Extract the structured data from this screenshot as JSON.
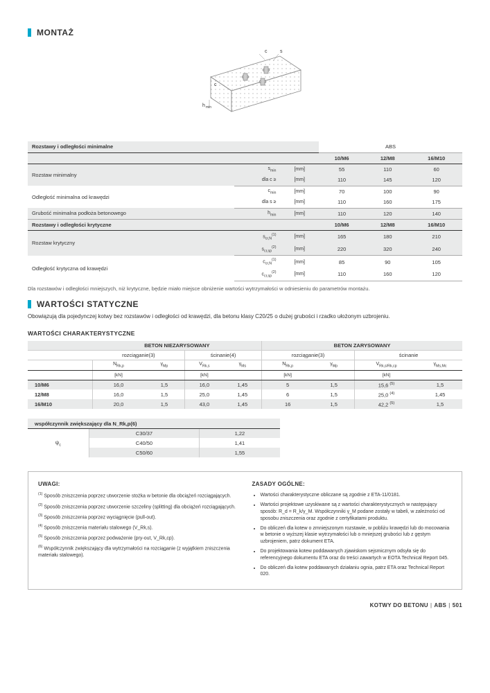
{
  "sections": {
    "montaz": "MONTAŻ",
    "statyczne": "WARTOŚCI STATYCZNE"
  },
  "diagram": {
    "hmin": "hmin",
    "c": "c",
    "s": "s"
  },
  "table1": {
    "title_min": "Rozstawy i odległości minimalne",
    "title_kryt": "Rozstawy i odległości krytyczne",
    "abs": "ABS",
    "cols": [
      "10/M6",
      "12/M8",
      "16/M10"
    ],
    "rows": [
      {
        "label": "Rozstaw minimalny",
        "sub": [
          {
            "sym": "s_min",
            "unit": "[mm]",
            "vals": [
              "55",
              "110",
              "60"
            ],
            "dark": true
          },
          {
            "sym": "dla c ≥",
            "unit": "[mm]",
            "vals": [
              "110",
              "145",
              "120"
            ],
            "dark": true
          }
        ]
      },
      {
        "label": "Odległość minimalna od krawędzi",
        "sub": [
          {
            "sym": "c_min",
            "unit": "[mm]",
            "vals": [
              "70",
              "100",
              "90"
            ],
            "dark": false
          },
          {
            "sym": "dla s ≥",
            "unit": "[mm]",
            "vals": [
              "110",
              "160",
              "175"
            ],
            "dark": false
          }
        ]
      },
      {
        "label": "Grubość minimalna podłoża betonowego",
        "sub": [
          {
            "sym": "h_min",
            "unit": "[mm]",
            "vals": [
              "110",
              "120",
              "140"
            ],
            "dark": true
          }
        ]
      }
    ],
    "rows2": [
      {
        "label": "Rozstaw krytyczny",
        "sub": [
          {
            "sym": "s_cr,N(1)",
            "unit": "[mm]",
            "vals": [
              "165",
              "180",
              "210"
            ],
            "dark": true
          },
          {
            "sym": "s_cr,sp(2)",
            "unit": "[mm]",
            "vals": [
              "220",
              "320",
              "240"
            ],
            "dark": true
          }
        ]
      },
      {
        "label": "Odległość krytyczna od krawędzi",
        "sub": [
          {
            "sym": "c_cr,N(1)",
            "unit": "[mm]",
            "vals": [
              "85",
              "90",
              "105"
            ],
            "dark": false
          },
          {
            "sym": "c_cr,sp(2)",
            "unit": "[mm]",
            "vals": [
              "110",
              "160",
              "120"
            ],
            "dark": false
          }
        ]
      }
    ],
    "note": "Dla rozstawów i odległości mniejszych, niż krytyczne, będzie miało miejsce obniżenie wartości wytrzymałości w odniesieniu do parametrów montażu."
  },
  "statyczne_intro": "Obowiązują dla pojedynczej kotwy bez rozstawów i odległości od krawędzi, dla betonu klasy C20/25 o dużej grubości i rzadko ułożonym uzbrojeniu.",
  "sub_heading": "WARTOŚCI CHARAKTERYSTYCZNE",
  "table2": {
    "top": [
      "BETON NIEZARYSOWANY",
      "BETON ZARYSOWANY"
    ],
    "mid": [
      "rozciąganie(3)",
      "ścinanie(4)",
      "rozciąganie(3)",
      "ścinanie"
    ],
    "cols": [
      "N_Rk,p",
      "γ_Mp",
      "V_Rk,s",
      "γ_Ms",
      "N_Rk,p",
      "γ_Mp",
      "V_Rk,s/Rk,cp",
      "γ_Ms,Mc"
    ],
    "units": [
      "[kN]",
      "",
      "[kN]",
      "",
      "[kN]",
      "",
      "[kN]",
      ""
    ],
    "rows": [
      {
        "h": "10/M6",
        "vals": [
          "16,0",
          "1,5",
          "16,0",
          "1,45",
          "5",
          "1,5",
          "15,6 (5)",
          "1,5"
        ],
        "dark": true
      },
      {
        "h": "12/M8",
        "vals": [
          "16,0",
          "1,5",
          "25,0",
          "1,45",
          "6",
          "1,5",
          "25,0 (4)",
          "1,45"
        ],
        "dark": false
      },
      {
        "h": "16/M10",
        "vals": [
          "20,0",
          "1,5",
          "43,0",
          "1,45",
          "16",
          "1,5",
          "42,2 (5)",
          "1,5"
        ],
        "dark": true
      }
    ]
  },
  "table3": {
    "title": "współczynnik zwiększający dla N_Rk,p(6)",
    "rowhead": "ψ_c",
    "rows": [
      {
        "c": "C30/37",
        "v": "1,22",
        "dark": true
      },
      {
        "c": "C40/50",
        "v": "1,41",
        "dark": false
      },
      {
        "c": "C50/60",
        "v": "1,55",
        "dark": true
      }
    ]
  },
  "notes": {
    "uwagi_title": "UWAGI:",
    "uwagi": [
      "Sposób zniszczenia poprzez utworzenie stożka w betonie dla obciążeń rozciągających.",
      "Sposób zniszczenia poprzez utworzenie szczeliny (splitting) dla obciążeń rozciągających.",
      "Sposób zniszczenia poprzez wyciągnięcie (pull-out).",
      "Sposób zniszczenia materiału stalowego (V_Rk,s).",
      "Sposób zniszczenia poprzez podważenie (pry-out, V_Rk,cp).",
      "Współczynnik zwiększający dla wytrzymałości na rozciąganie (z wyjątkiem zniszczenia materiału stalowego)."
    ],
    "zasady_title": "ZASADY OGÓLNE:",
    "zasady": [
      "Wartości charakterystyczne obliczane są zgodnie z ETA-11/0181.",
      "Wartości projektowe uzyskiwane są z wartości charakterystycznych w następujący sposób: R_d = R_k/γ_M. Współczynniki γ_M podane zostały w tabeli, w zależności od sposobu zniszczenia oraz zgodnie z certyfikatami produktu.",
      "Do obliczeń dla kotew o zmniejszonym rozstawie, w pobliżu krawędzi lub do mocowania w betonie o wyższej klasie wytrzymałości lub o mniejszej grubości lub z gęstym uzbrojeniem, patrz dokument ETA.",
      "Do projektowania kotew poddawanych zjawiskom sejsmicznym odsyła się do referencyjnego dokumentu ETA oraz do treści zawartych w EOTA Technical Report 045.",
      "Do obliczeń dla kotew poddawanych działaniu ognia, patrz ETA oraz Technical Report 020."
    ]
  },
  "footer": {
    "left": "KOTWY DO BETONU",
    "mid": "ABS",
    "page": "501"
  }
}
